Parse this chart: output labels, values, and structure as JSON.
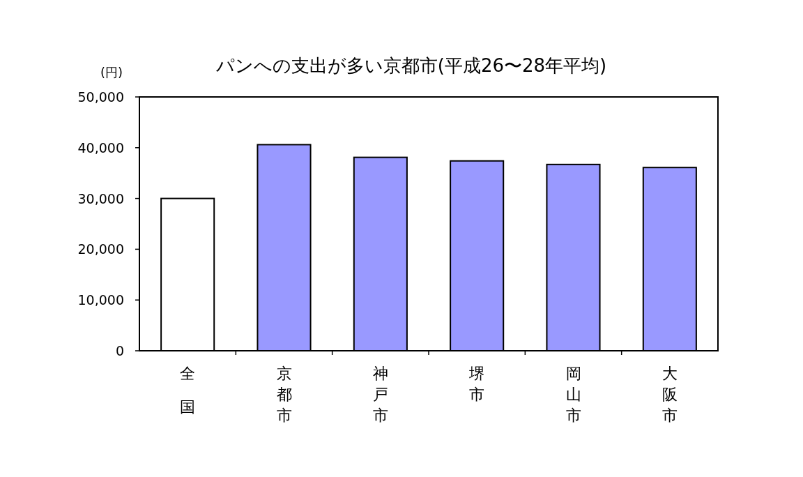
{
  "chart_data": {
    "type": "bar",
    "title": "パンへの支出が多い京都市(平成26〜28年平均)",
    "ylabel": "(円)",
    "categories": [
      "全国",
      "京都市",
      "神戸市",
      "堺市",
      "岡山市",
      "大阪市"
    ],
    "values": [
      30000,
      40600,
      38100,
      37400,
      36700,
      36100
    ],
    "colors": [
      "#ffffff",
      "#9999ff",
      "#9999ff",
      "#9999ff",
      "#9999ff",
      "#9999ff"
    ],
    "ylim": [
      0,
      50000
    ],
    "yticks": [
      {
        "value": 0,
        "label": "0"
      },
      {
        "value": 10000,
        "label": "10,000"
      },
      {
        "value": 20000,
        "label": "20,000"
      },
      {
        "value": 30000,
        "label": "30,000"
      },
      {
        "value": 40000,
        "label": "40,000"
      },
      {
        "value": 50000,
        "label": "50,000"
      }
    ],
    "grid": false
  }
}
